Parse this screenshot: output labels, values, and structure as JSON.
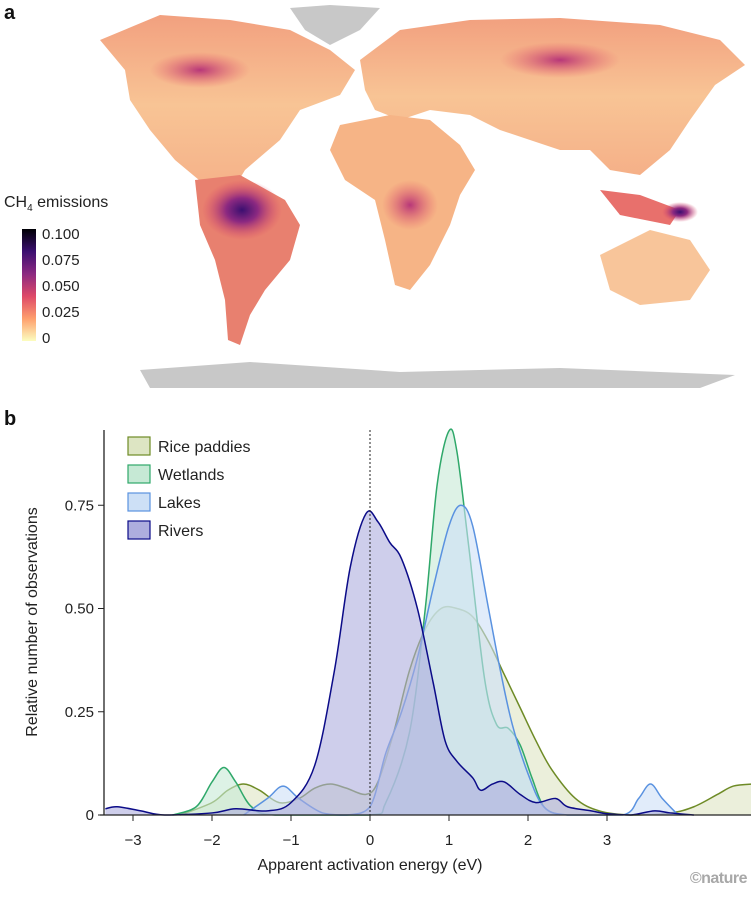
{
  "panel_a": {
    "label": "a",
    "colorbar": {
      "title": "CH",
      "title_sub": "4",
      "title_rest": " emissions",
      "ticks": [
        "0.100",
        "0.075",
        "0.050",
        "0.025",
        "0"
      ],
      "colors": [
        "#fcfdbf",
        "#fe9f6d",
        "#de4968",
        "#8c2981",
        "#3b0f70",
        "#000004"
      ]
    },
    "map_colors": {
      "land": "#f7b98a",
      "ice": "#c8c8c8"
    }
  },
  "panel_b": {
    "label": "b"
  },
  "credit": "©nature",
  "chart_data": {
    "type": "area",
    "title": "",
    "xlabel": "Apparent activation energy (eV)",
    "ylabel": "Relative number of observations",
    "xlim": [
      -3.35,
      4.85
    ],
    "ylim": [
      0,
      0.93
    ],
    "xticks": [
      "−3",
      "−2",
      "−1",
      "0",
      "1",
      "2",
      "3"
    ],
    "xtick_values": [
      -3,
      -2,
      -1,
      0,
      1,
      2,
      3
    ],
    "yticks": [
      "0",
      "0.25",
      "0.50",
      "0.75"
    ],
    "ytick_values": [
      0,
      0.25,
      0.5,
      0.75
    ],
    "reference_line_x": 0,
    "legend_position": "top-left",
    "series": [
      {
        "name": "Rice paddies",
        "fill": "#dde5c3",
        "stroke": "#6e8b26",
        "points": [
          [
            -2.4,
            0
          ],
          [
            -2.0,
            0.03
          ],
          [
            -1.8,
            0.06
          ],
          [
            -1.6,
            0.075
          ],
          [
            -1.4,
            0.06
          ],
          [
            -1.15,
            0.03
          ],
          [
            -0.9,
            0.04
          ],
          [
            -0.7,
            0.065
          ],
          [
            -0.5,
            0.075
          ],
          [
            -0.3,
            0.065
          ],
          [
            -0.05,
            0.05
          ],
          [
            0.1,
            0.08
          ],
          [
            0.3,
            0.2
          ],
          [
            0.5,
            0.35
          ],
          [
            0.7,
            0.45
          ],
          [
            0.9,
            0.5
          ],
          [
            1.1,
            0.5
          ],
          [
            1.3,
            0.48
          ],
          [
            1.5,
            0.42
          ],
          [
            1.7,
            0.34
          ],
          [
            1.9,
            0.26
          ],
          [
            2.1,
            0.18
          ],
          [
            2.3,
            0.11
          ],
          [
            2.6,
            0.04
          ],
          [
            2.9,
            0.01
          ],
          [
            3.3,
            0
          ],
          [
            3.8,
            0.005
          ],
          [
            4.1,
            0.02
          ],
          [
            4.4,
            0.05
          ],
          [
            4.6,
            0.07
          ],
          [
            4.85,
            0.075
          ]
        ]
      },
      {
        "name": "Wetlands",
        "fill": "#c6e9d5",
        "stroke": "#2fa86a",
        "points": [
          [
            -2.5,
            0
          ],
          [
            -2.2,
            0.02
          ],
          [
            -2.0,
            0.08
          ],
          [
            -1.85,
            0.115
          ],
          [
            -1.7,
            0.08
          ],
          [
            -1.5,
            0.02
          ],
          [
            -1.2,
            0
          ],
          [
            0,
            0
          ],
          [
            0.2,
            0.03
          ],
          [
            0.5,
            0.2
          ],
          [
            0.7,
            0.5
          ],
          [
            0.85,
            0.8
          ],
          [
            1.0,
            0.93
          ],
          [
            1.1,
            0.88
          ],
          [
            1.25,
            0.65
          ],
          [
            1.45,
            0.33
          ],
          [
            1.6,
            0.22
          ],
          [
            1.75,
            0.21
          ],
          [
            1.9,
            0.17
          ],
          [
            2.05,
            0.09
          ],
          [
            2.2,
            0.02
          ],
          [
            2.4,
            0
          ]
        ]
      },
      {
        "name": "Lakes",
        "fill": "#cde0f6",
        "stroke": "#5a92e0",
        "points": [
          [
            -1.6,
            0
          ],
          [
            -1.3,
            0.04
          ],
          [
            -1.1,
            0.07
          ],
          [
            -0.9,
            0.04
          ],
          [
            -0.6,
            0.005
          ],
          [
            -0.3,
            0
          ],
          [
            0,
            0.02
          ],
          [
            0.2,
            0.15
          ],
          [
            0.4,
            0.25
          ],
          [
            0.6,
            0.38
          ],
          [
            0.8,
            0.55
          ],
          [
            1.0,
            0.7
          ],
          [
            1.15,
            0.75
          ],
          [
            1.3,
            0.7
          ],
          [
            1.5,
            0.5
          ],
          [
            1.65,
            0.35
          ],
          [
            1.8,
            0.22
          ],
          [
            2.0,
            0.1
          ],
          [
            2.2,
            0.02
          ],
          [
            2.5,
            0
          ],
          [
            3.2,
            0
          ],
          [
            3.4,
            0.04
          ],
          [
            3.55,
            0.075
          ],
          [
            3.7,
            0.04
          ],
          [
            3.9,
            0
          ]
        ]
      },
      {
        "name": "Rivers",
        "fill": "#aeaede",
        "stroke": "#0b0b88",
        "points": [
          [
            -3.35,
            0.015
          ],
          [
            -3.2,
            0.02
          ],
          [
            -2.9,
            0.01
          ],
          [
            -2.6,
            0
          ],
          [
            -2.0,
            0.005
          ],
          [
            -1.7,
            0.015
          ],
          [
            -1.3,
            0.01
          ],
          [
            -1.0,
            0.03
          ],
          [
            -0.7,
            0.12
          ],
          [
            -0.45,
            0.35
          ],
          [
            -0.25,
            0.6
          ],
          [
            -0.05,
            0.73
          ],
          [
            0.1,
            0.71
          ],
          [
            0.25,
            0.66
          ],
          [
            0.4,
            0.62
          ],
          [
            0.6,
            0.5
          ],
          [
            0.8,
            0.32
          ],
          [
            0.95,
            0.18
          ],
          [
            1.1,
            0.13
          ],
          [
            1.3,
            0.09
          ],
          [
            1.4,
            0.06
          ],
          [
            1.55,
            0.075
          ],
          [
            1.7,
            0.08
          ],
          [
            1.9,
            0.05
          ],
          [
            2.1,
            0.03
          ],
          [
            2.35,
            0.04
          ],
          [
            2.5,
            0.02
          ],
          [
            2.8,
            0.01
          ],
          [
            3.0,
            0.003
          ],
          [
            3.3,
            0
          ],
          [
            3.6,
            0.01
          ],
          [
            3.8,
            0.005
          ],
          [
            4.1,
            0
          ]
        ]
      }
    ]
  }
}
